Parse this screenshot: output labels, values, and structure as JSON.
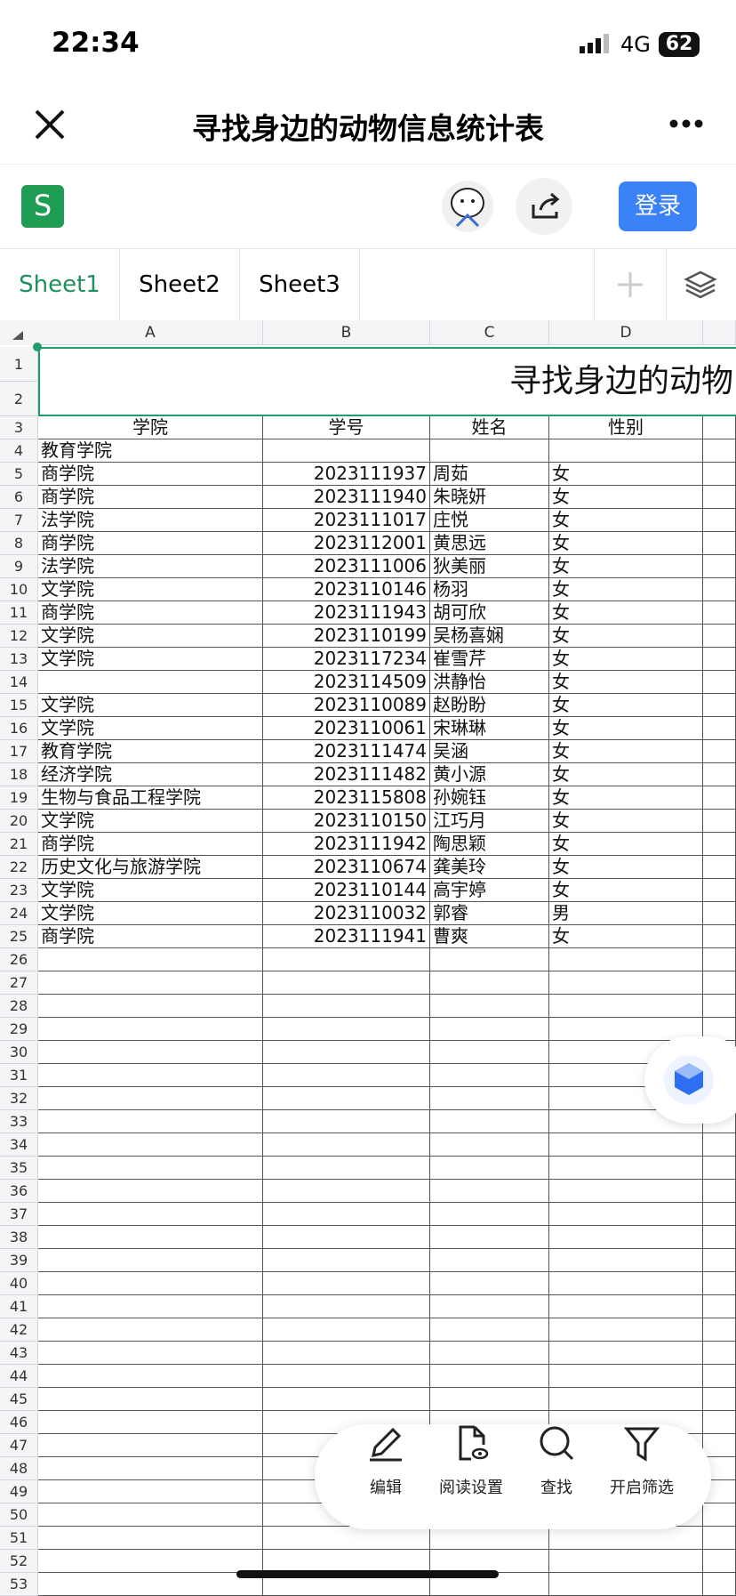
{
  "status": {
    "time": "22:34",
    "network": "4G",
    "battery": "62"
  },
  "header": {
    "title": "寻找身边的动物信息统计表",
    "app_letter": "S",
    "login": "登录"
  },
  "tabs": [
    "Sheet1",
    "Sheet2",
    "Sheet3"
  ],
  "grid": {
    "columns": [
      "A",
      "B",
      "C",
      "D"
    ],
    "title_cell": "寻找身边的动物",
    "header_row": [
      "学院",
      "学号",
      "姓名",
      "性别"
    ],
    "rows": [
      [
        "教育学院",
        null,
        null,
        null
      ],
      [
        "商学院",
        2023111937,
        "周茹",
        "女"
      ],
      [
        "商学院",
        2023111940,
        "朱晓妍",
        "女"
      ],
      [
        "法学院",
        2023111017,
        "庄悦",
        "女"
      ],
      [
        "商学院",
        2023112001,
        "黄思远",
        "女"
      ],
      [
        "法学院",
        2023111006,
        "狄美丽",
        "女"
      ],
      [
        "文学院",
        2023110146,
        "杨羽",
        "女"
      ],
      [
        "商学院",
        2023111943,
        "胡可欣",
        "女"
      ],
      [
        "文学院",
        2023110199,
        "吴杨喜娴",
        "女"
      ],
      [
        "文学院",
        2023117234,
        "崔雪芹",
        "女"
      ],
      [
        null,
        2023114509,
        "洪静怡",
        "女"
      ],
      [
        "文学院",
        2023110089,
        "赵盼盼",
        "女"
      ],
      [
        "文学院",
        2023110061,
        "宋琳琳",
        "女"
      ],
      [
        "教育学院",
        2023111474,
        "吴涵",
        "女"
      ],
      [
        "经济学院",
        2023111482,
        "黄小源",
        "女"
      ],
      [
        "生物与食品工程学院",
        2023115808,
        "孙婉钰",
        "女"
      ],
      [
        "文学院",
        2023110150,
        "江巧月",
        "女"
      ],
      [
        "商学院",
        2023111942,
        "陶思颖",
        "女"
      ],
      [
        "历史文化与旅游学院",
        2023110674,
        "龚美玲",
        "女"
      ],
      [
        "文学院",
        2023110144,
        "高宇婷",
        "女"
      ],
      [
        "文学院",
        2023110032,
        "郭睿",
        "男"
      ],
      [
        "商学院",
        2023111941,
        "曹爽",
        "女"
      ]
    ],
    "row_numbers": [
      1,
      2,
      3,
      4,
      5,
      6,
      7,
      8,
      9,
      10,
      11,
      12,
      13,
      14,
      15,
      16,
      17,
      18,
      19,
      20,
      21,
      22,
      23,
      24,
      25,
      26,
      27,
      28,
      29,
      30,
      31,
      32,
      33,
      34,
      35,
      36,
      37,
      38,
      39,
      40,
      41,
      42,
      43,
      44,
      45,
      46,
      47,
      48,
      49,
      50,
      51,
      52,
      53
    ]
  },
  "toolbar": [
    "编辑",
    "阅读设置",
    "查找",
    "开启筛选"
  ]
}
